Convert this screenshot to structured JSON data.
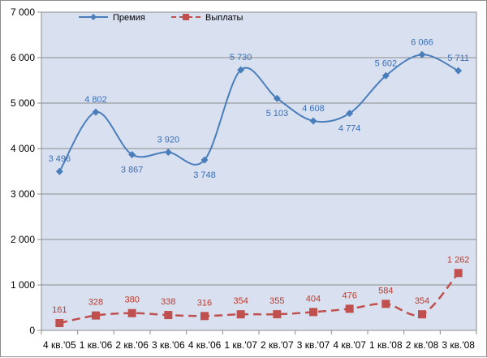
{
  "chart_data": {
    "type": "line",
    "categories": [
      "4 кв.'05",
      "1 кв.'06",
      "2 кв.'06",
      "3 кв.'06",
      "4 кв.'06",
      "1 кв.'07",
      "2 кв.'07",
      "3 кв.'07",
      "4 кв.'07",
      "1 кв.'08",
      "2 кв.'08",
      "3 кв.'08"
    ],
    "series": [
      {
        "name": "Премия",
        "color": "#4a7ebb",
        "marker": "diamond",
        "line_style": "solid",
        "values": [
          3496,
          4802,
          3867,
          3920,
          3748,
          5730,
          5103,
          4608,
          4774,
          5602,
          6066,
          5711
        ],
        "labels": [
          "3 496",
          "4 802",
          "3 867",
          "3 920",
          "3 748",
          "5 730",
          "5 103",
          "4 608",
          "4 774",
          "5 602",
          "6 066",
          "5 711"
        ]
      },
      {
        "name": "Выплаты",
        "color": "#c0504d",
        "marker": "square",
        "line_style": "dashed",
        "values": [
          161,
          328,
          380,
          338,
          316,
          354,
          355,
          404,
          476,
          584,
          354,
          1262
        ],
        "labels": [
          "161",
          "328",
          "380",
          "338",
          "316",
          "354",
          "355",
          "404",
          "476",
          "584",
          "354",
          "1 262"
        ]
      }
    ],
    "yticks": [
      "0",
      "1 000",
      "2 000",
      "3 000",
      "4 000",
      "5 000",
      "6 000",
      "7 000"
    ],
    "ylim": [
      0,
      7000
    ],
    "grid": true,
    "plot_background": "#d9e1f0",
    "legend_position": "top-left"
  }
}
